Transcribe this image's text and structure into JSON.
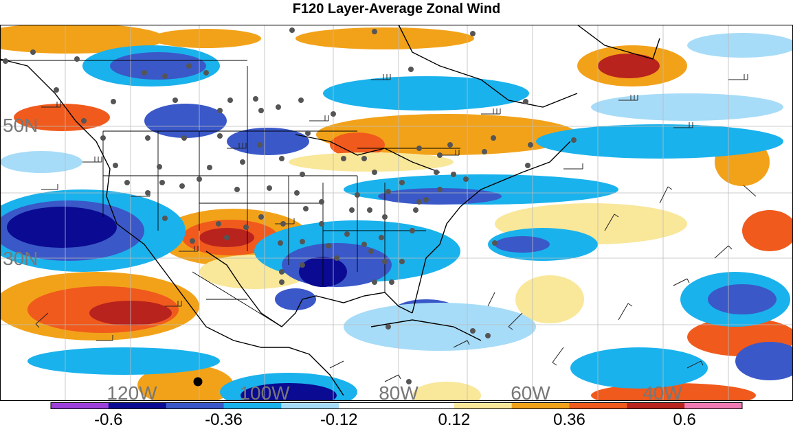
{
  "title": "F120 Layer-Average Zonal Wind",
  "map": {
    "longitude_labels": [
      "120W",
      "100W",
      "80W",
      "60W",
      "40W"
    ],
    "latitude_labels": [
      "50N",
      "30N"
    ]
  },
  "colorbar": {
    "colors": [
      "#9d3fd9",
      "#0a0a92",
      "#3a58c8",
      "#1ab2ec",
      "#a7dcf8",
      "#ffffff",
      "#ffffff",
      "#f9e79a",
      "#f2a219",
      "#f05a1c",
      "#b8231e",
      "#f07bb4"
    ],
    "tick_labels": [
      "-0.6",
      "-0.36",
      "-0.12",
      "0.12",
      "0.36",
      "0.6"
    ]
  },
  "colors": {
    "strong_negative": "#0a0a92",
    "negative": "#3a58c8",
    "weak_negative": "#1ab2ec",
    "faint_negative": "#a7dcf8",
    "faint_positive": "#f9e79a",
    "weak_positive": "#f2a219",
    "positive": "#f05a1c",
    "strong_positive": "#b8231e",
    "station": "#555555",
    "coastline": "#000000"
  }
}
